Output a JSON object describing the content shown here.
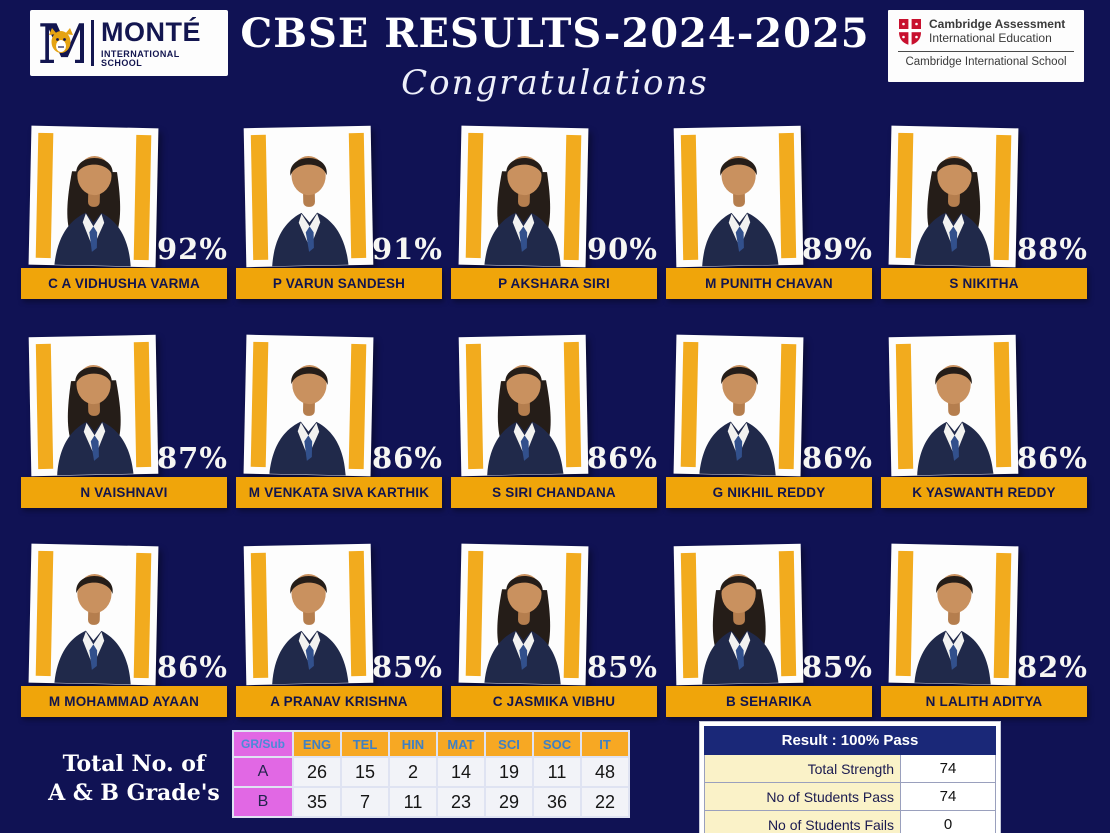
{
  "header": {
    "logo": {
      "letter": "M",
      "name": "MONTÉ",
      "subtitle": "INTERNATIONAL SCHOOL"
    },
    "title": "CBSE RESULTS-2024-2025",
    "congrats": "Congratulations",
    "cambridge": {
      "line1": "Cambridge Assessment",
      "line2": "International Education",
      "line3": "Cambridge International School"
    }
  },
  "students": [
    {
      "name": "C A VIDHUSHA VARMA",
      "percent": "92%",
      "photo": "female-student"
    },
    {
      "name": "P VARUN SANDESH",
      "percent": "91%",
      "photo": "male-student"
    },
    {
      "name": "P AKSHARA SIRI",
      "percent": "90%",
      "photo": "female-student"
    },
    {
      "name": "M PUNITH CHAVAN",
      "percent": "89%",
      "photo": "male-student"
    },
    {
      "name": "S NIKITHA",
      "percent": "88%",
      "photo": "female-student"
    },
    {
      "name": "N VAISHNAVI",
      "percent": "87%",
      "photo": "female-student"
    },
    {
      "name": "M VENKATA SIVA KARTHIK",
      "percent": "86%",
      "photo": "male-student"
    },
    {
      "name": "S SIRI CHANDANA",
      "percent": "86%",
      "photo": "female-student"
    },
    {
      "name": "G NIKHIL REDDY",
      "percent": "86%",
      "photo": "male-student"
    },
    {
      "name": "K YASWANTH REDDY",
      "percent": "86%",
      "photo": "male-student"
    },
    {
      "name": "M MOHAMMAD AYAAN",
      "percent": "86%",
      "photo": "male-student"
    },
    {
      "name": "A PRANAV KRISHNA",
      "percent": "85%",
      "photo": "male-student"
    },
    {
      "name": "C JASMIKA VIBHU",
      "percent": "85%",
      "photo": "female-student"
    },
    {
      "name": "B SEHARIKA",
      "percent": "85%",
      "photo": "female-student"
    },
    {
      "name": "N LALITH ADITYA",
      "percent": "82%",
      "photo": "male-student"
    }
  ],
  "grades": {
    "caption1": "Total No. of",
    "caption2": "A & B Grade's",
    "corner": "GR/Sub",
    "subjects": [
      "ENG",
      "TEL",
      "HIN",
      "MAT",
      "SCI",
      "SOC",
      "IT"
    ],
    "rows": [
      {
        "grade": "A",
        "values": [
          26,
          15,
          2,
          14,
          19,
          11,
          48
        ]
      },
      {
        "grade": "B",
        "values": [
          35,
          7,
          11,
          23,
          29,
          36,
          22
        ]
      }
    ]
  },
  "result": {
    "header": "Result : 100% Pass",
    "rows": [
      {
        "label": "Total Strength",
        "value": "74"
      },
      {
        "label": "No of Students Pass",
        "value": "74"
      },
      {
        "label": "No of Students Fails",
        "value": "0"
      }
    ]
  },
  "colors": {
    "background_navy": "#101254",
    "gold_accent": "#F0A50A",
    "magenta_cell": "#E168E4",
    "table_gold": "#F7A823",
    "table_blue_text": "#3f80c4",
    "result_header_navy": "#1A2878",
    "pale_yellow": "#FAF2C8"
  }
}
